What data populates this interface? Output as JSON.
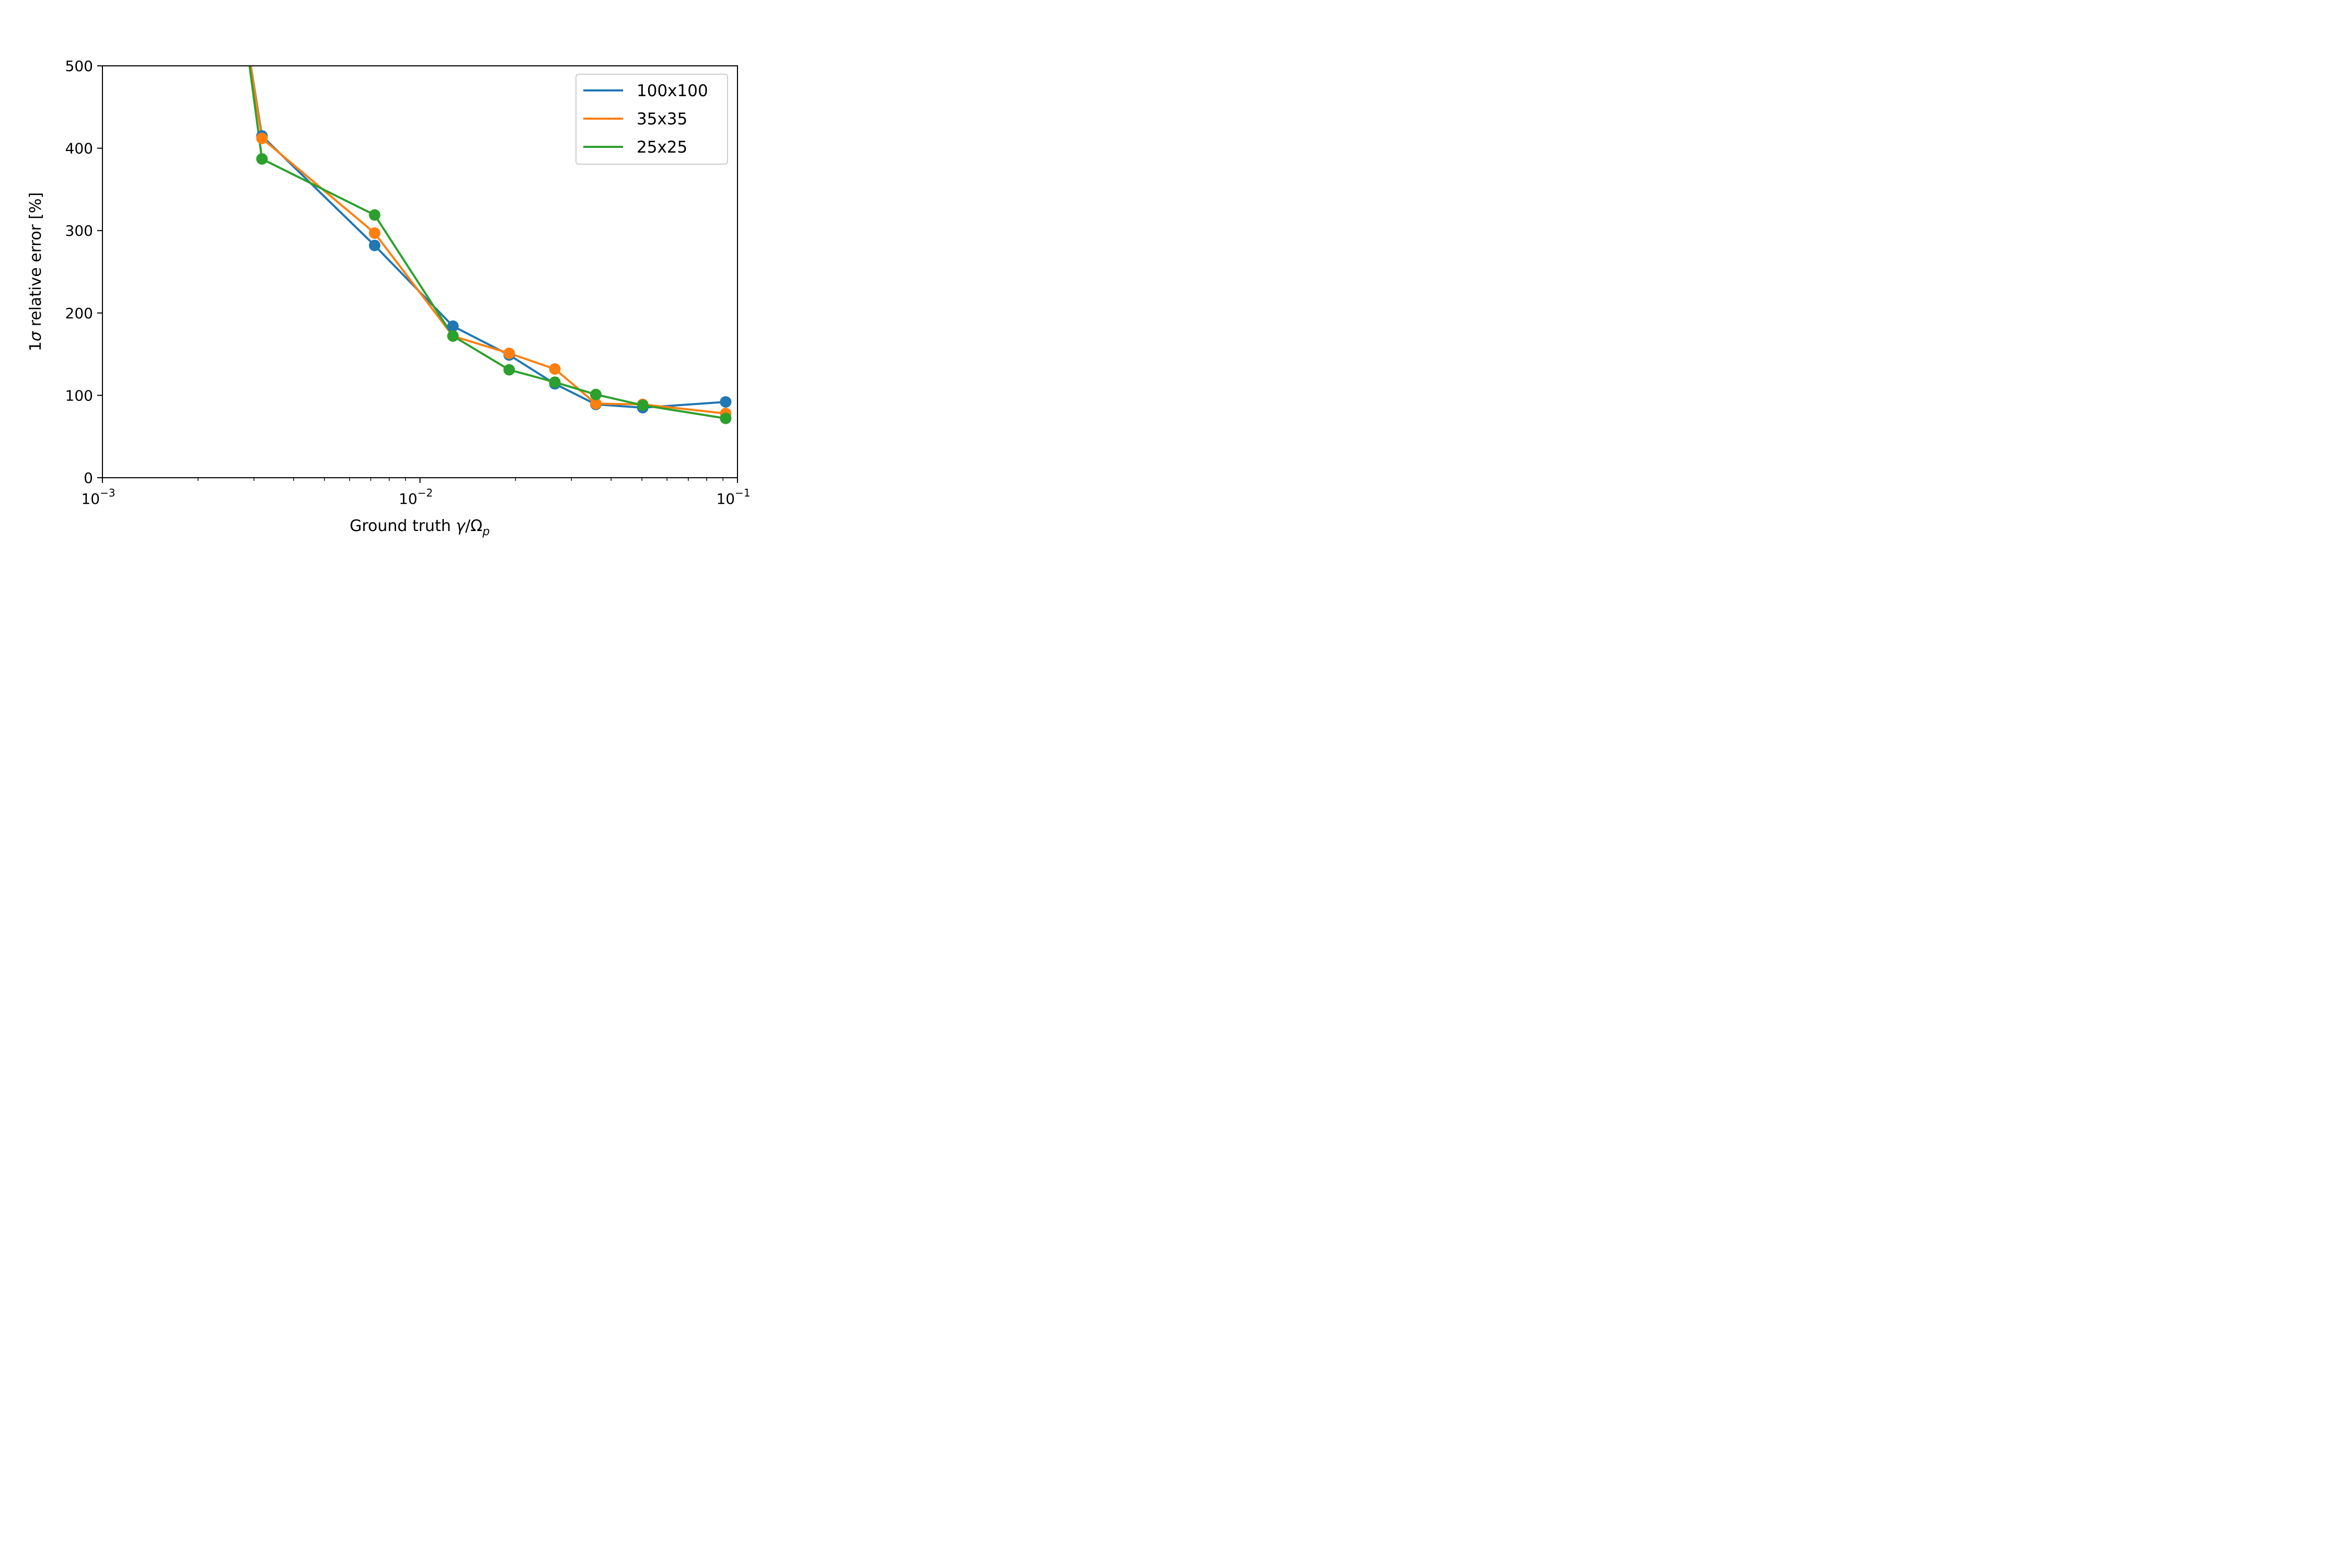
{
  "chart_data": {
    "type": "line",
    "xscale": "log",
    "xlim": [
      0.001,
      0.1
    ],
    "ylim": [
      0,
      500
    ],
    "xlabel": {
      "prefix": "Ground truth ",
      "gamma": "γ",
      "slash": "/Ω",
      "sub": "p"
    },
    "ylabel": {
      "prefix": "1",
      "sigma": "σ",
      "rest": " relative error [%]"
    },
    "xticks": [
      {
        "value": 0.001,
        "base": "10",
        "exp": "−3"
      },
      {
        "value": 0.01,
        "base": "10",
        "exp": "−2"
      },
      {
        "value": 0.1,
        "base": "10",
        "exp": "−1"
      }
    ],
    "yticks": [
      {
        "value": 0,
        "label": "0"
      },
      {
        "value": 100,
        "label": "100"
      },
      {
        "value": 200,
        "label": "200"
      },
      {
        "value": 300,
        "label": "300"
      },
      {
        "value": 400,
        "label": "400"
      },
      {
        "value": 500,
        "label": "500"
      }
    ],
    "grid": false,
    "legend_position": "top-right",
    "series": [
      {
        "name": "100x100",
        "color": "#1f77b4",
        "x": [
          0.00277,
          0.00318,
          0.0072,
          0.0127,
          0.0191,
          0.0266,
          0.0358,
          0.0503,
          0.0918
        ],
        "y": [
          560,
          415,
          282,
          184,
          149,
          114,
          89,
          85,
          92
        ],
        "markers": [
          false,
          true,
          true,
          true,
          true,
          true,
          true,
          true,
          true
        ]
      },
      {
        "name": "35x35",
        "color": "#ff7f0e",
        "x": [
          0.00277,
          0.00318,
          0.0072,
          0.0127,
          0.0191,
          0.0266,
          0.0358,
          0.0503,
          0.0918
        ],
        "y": [
          560,
          412,
          297,
          172,
          151,
          132,
          90,
          89,
          78
        ],
        "markers": [
          false,
          true,
          true,
          true,
          true,
          true,
          true,
          true,
          true
        ]
      },
      {
        "name": "25x25",
        "color": "#2ca02c",
        "x": [
          0.00277,
          0.00318,
          0.0072,
          0.0127,
          0.0191,
          0.0266,
          0.0358,
          0.0503,
          0.0918
        ],
        "y": [
          560,
          387,
          319,
          172,
          131,
          116,
          101,
          88,
          72
        ],
        "markers": [
          false,
          true,
          true,
          true,
          true,
          true,
          true,
          true,
          true
        ]
      }
    ]
  }
}
